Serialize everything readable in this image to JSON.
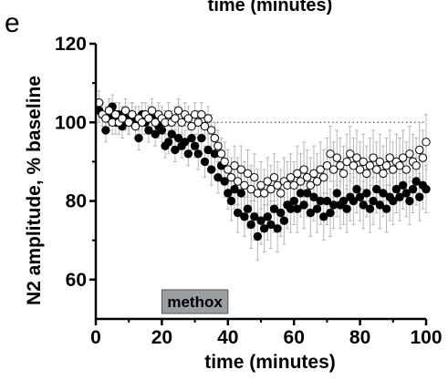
{
  "panel_label": "e",
  "top_cut_label": "time (minutes)",
  "colors": {
    "closed": "#000000",
    "open_fill": "#ffffff",
    "errbar": "#b0b0b0",
    "drug_bar": "#9a9fa3",
    "baseline": "#555555"
  },
  "chart_data": {
    "type": "scatter",
    "xlabel": "time (minutes)",
    "ylabel": "N2 amplitude, % baseline",
    "xlim": [
      0,
      100
    ],
    "ylim": [
      50,
      120
    ],
    "xticks": [
      "0",
      "20",
      "40",
      "60",
      "80",
      "100"
    ],
    "yticks": [
      "60",
      "80",
      "100",
      "120"
    ],
    "baseline": 100,
    "drug_bar": {
      "label": "methox",
      "x_start": 20,
      "x_end": 40
    },
    "series": [
      {
        "marker": "filled",
        "points": [
          [
            1,
            103
          ],
          [
            2,
            102
          ],
          [
            3,
            98
          ],
          [
            4,
            101
          ],
          [
            5,
            104
          ],
          [
            6,
            100
          ],
          [
            7,
            102
          ],
          [
            8,
            99
          ],
          [
            9,
            101
          ],
          [
            10,
            100
          ],
          [
            11,
            102
          ],
          [
            12,
            101
          ],
          [
            13,
            96
          ],
          [
            14,
            102
          ],
          [
            15,
            100
          ],
          [
            16,
            98
          ],
          [
            17,
            101
          ],
          [
            18,
            97
          ],
          [
            19,
            99
          ],
          [
            20,
            98
          ],
          [
            21,
            94
          ],
          [
            22,
            95
          ],
          [
            23,
            97
          ],
          [
            24,
            93
          ],
          [
            25,
            96
          ],
          [
            26,
            94
          ],
          [
            27,
            95
          ],
          [
            28,
            92
          ],
          [
            29,
            96
          ],
          [
            30,
            94
          ],
          [
            31,
            92
          ],
          [
            32,
            96
          ],
          [
            33,
            90
          ],
          [
            34,
            93
          ],
          [
            35,
            88
          ],
          [
            36,
            92
          ],
          [
            37,
            86
          ],
          [
            38,
            89
          ],
          [
            39,
            85
          ],
          [
            40,
            82
          ],
          [
            41,
            80
          ],
          [
            42,
            83
          ],
          [
            43,
            77
          ],
          [
            44,
            82
          ],
          [
            45,
            76
          ],
          [
            46,
            78
          ],
          [
            47,
            74
          ],
          [
            48,
            76
          ],
          [
            49,
            71
          ],
          [
            50,
            75
          ],
          [
            51,
            73
          ],
          [
            52,
            76
          ],
          [
            53,
            74
          ],
          [
            54,
            78
          ],
          [
            55,
            73
          ],
          [
            56,
            77
          ],
          [
            57,
            75
          ],
          [
            58,
            79
          ],
          [
            59,
            78
          ],
          [
            60,
            80
          ],
          [
            61,
            78
          ],
          [
            62,
            82
          ],
          [
            63,
            79
          ],
          [
            64,
            82
          ],
          [
            65,
            77
          ],
          [
            66,
            81
          ],
          [
            67,
            78
          ],
          [
            68,
            80
          ],
          [
            69,
            76
          ],
          [
            70,
            80
          ],
          [
            71,
            77
          ],
          [
            72,
            79
          ],
          [
            73,
            82
          ],
          [
            74,
            79
          ],
          [
            75,
            80
          ],
          [
            76,
            78
          ],
          [
            77,
            81
          ],
          [
            78,
            80
          ],
          [
            79,
            83
          ],
          [
            80,
            81
          ],
          [
            81,
            79
          ],
          [
            82,
            82
          ],
          [
            83,
            78
          ],
          [
            84,
            80
          ],
          [
            85,
            83
          ],
          [
            86,
            79
          ],
          [
            87,
            82
          ],
          [
            88,
            78
          ],
          [
            89,
            81
          ],
          [
            90,
            80
          ],
          [
            91,
            83
          ],
          [
            92,
            81
          ],
          [
            93,
            84
          ],
          [
            94,
            82
          ],
          [
            95,
            80
          ],
          [
            96,
            83
          ],
          [
            97,
            85
          ],
          [
            98,
            81
          ],
          [
            99,
            84
          ],
          [
            100,
            83
          ]
        ],
        "errors": [
          3,
          3,
          3,
          3,
          3,
          3,
          3,
          3,
          3,
          3,
          3,
          3,
          3,
          3,
          3,
          3,
          3,
          3,
          3,
          3,
          3,
          3,
          3,
          3,
          3,
          3,
          3,
          3,
          3,
          3,
          4,
          4,
          4,
          4,
          4,
          4,
          4,
          4,
          4,
          4,
          5,
          5,
          5,
          5,
          5,
          5,
          6,
          6,
          6,
          6,
          6,
          6,
          6,
          6,
          6,
          6,
          6,
          6,
          6,
          6,
          6,
          6,
          6,
          6,
          6,
          6,
          6,
          6,
          6,
          6,
          6,
          6,
          6,
          6,
          6,
          6,
          6,
          6,
          6,
          6,
          6,
          6,
          6,
          6,
          6,
          6,
          6,
          6,
          6,
          6,
          6,
          6,
          6,
          6,
          6,
          6,
          6,
          6,
          6,
          6
        ]
      },
      {
        "marker": "open",
        "points": [
          [
            1,
            105
          ],
          [
            2,
            102
          ],
          [
            3,
            101
          ],
          [
            4,
            103
          ],
          [
            5,
            100
          ],
          [
            6,
            102
          ],
          [
            7,
            100
          ],
          [
            8,
            101
          ],
          [
            9,
            103
          ],
          [
            10,
            100
          ],
          [
            11,
            102
          ],
          [
            12,
            99
          ],
          [
            13,
            101
          ],
          [
            14,
            100
          ],
          [
            15,
            102
          ],
          [
            16,
            101
          ],
          [
            17,
            103
          ],
          [
            18,
            100
          ],
          [
            19,
            102
          ],
          [
            20,
            101
          ],
          [
            21,
            100
          ],
          [
            22,
            102
          ],
          [
            23,
            100
          ],
          [
            24,
            101
          ],
          [
            25,
            103
          ],
          [
            26,
            100
          ],
          [
            27,
            102
          ],
          [
            28,
            101
          ],
          [
            29,
            99
          ],
          [
            30,
            102
          ],
          [
            31,
            100
          ],
          [
            32,
            102
          ],
          [
            33,
            99
          ],
          [
            34,
            101
          ],
          [
            35,
            98
          ],
          [
            36,
            96
          ],
          [
            37,
            94
          ],
          [
            38,
            92
          ],
          [
            39,
            90
          ],
          [
            40,
            88
          ],
          [
            41,
            86
          ],
          [
            42,
            89
          ],
          [
            43,
            85
          ],
          [
            44,
            88
          ],
          [
            45,
            84
          ],
          [
            46,
            87
          ],
          [
            47,
            83
          ],
          [
            48,
            86
          ],
          [
            49,
            82
          ],
          [
            50,
            84
          ],
          [
            51,
            82
          ],
          [
            52,
            85
          ],
          [
            53,
            83
          ],
          [
            54,
            86
          ],
          [
            55,
            84
          ],
          [
            56,
            82
          ],
          [
            57,
            85
          ],
          [
            58,
            84
          ],
          [
            59,
            86
          ],
          [
            60,
            84
          ],
          [
            61,
            87
          ],
          [
            62,
            85
          ],
          [
            63,
            88
          ],
          [
            64,
            86
          ],
          [
            65,
            84
          ],
          [
            66,
            87
          ],
          [
            67,
            85
          ],
          [
            68,
            88
          ],
          [
            69,
            86
          ],
          [
            70,
            89
          ],
          [
            71,
            92
          ],
          [
            72,
            88
          ],
          [
            73,
            91
          ],
          [
            74,
            89
          ],
          [
            75,
            87
          ],
          [
            76,
            90
          ],
          [
            77,
            92
          ],
          [
            78,
            89
          ],
          [
            79,
            91
          ],
          [
            80,
            88
          ],
          [
            81,
            90
          ],
          [
            82,
            87
          ],
          [
            83,
            89
          ],
          [
            84,
            91
          ],
          [
            85,
            88
          ],
          [
            86,
            90
          ],
          [
            87,
            87
          ],
          [
            88,
            89
          ],
          [
            89,
            91
          ],
          [
            90,
            88
          ],
          [
            91,
            90
          ],
          [
            92,
            89
          ],
          [
            93,
            91
          ],
          [
            94,
            88
          ],
          [
            95,
            92
          ],
          [
            96,
            90
          ],
          [
            97,
            89
          ],
          [
            98,
            93
          ],
          [
            99,
            91
          ],
          [
            100,
            95
          ]
        ],
        "errors": [
          3,
          3,
          3,
          3,
          3,
          3,
          3,
          3,
          3,
          3,
          3,
          3,
          3,
          3,
          3,
          3,
          3,
          3,
          3,
          3,
          3,
          3,
          3,
          3,
          3,
          3,
          3,
          3,
          3,
          3,
          3,
          3,
          3,
          3,
          4,
          4,
          4,
          4,
          5,
          5,
          5,
          5,
          6,
          6,
          6,
          6,
          6,
          6,
          6,
          6,
          6,
          6,
          6,
          6,
          6,
          6,
          6,
          6,
          6,
          6,
          7,
          7,
          7,
          7,
          7,
          7,
          7,
          7,
          7,
          7,
          7,
          7,
          7,
          7,
          7,
          7,
          7,
          7,
          7,
          7,
          7,
          7,
          7,
          7,
          7,
          7,
          7,
          7,
          7,
          7,
          7,
          7,
          7,
          7,
          7,
          7,
          7,
          7,
          7,
          7
        ]
      }
    ]
  }
}
